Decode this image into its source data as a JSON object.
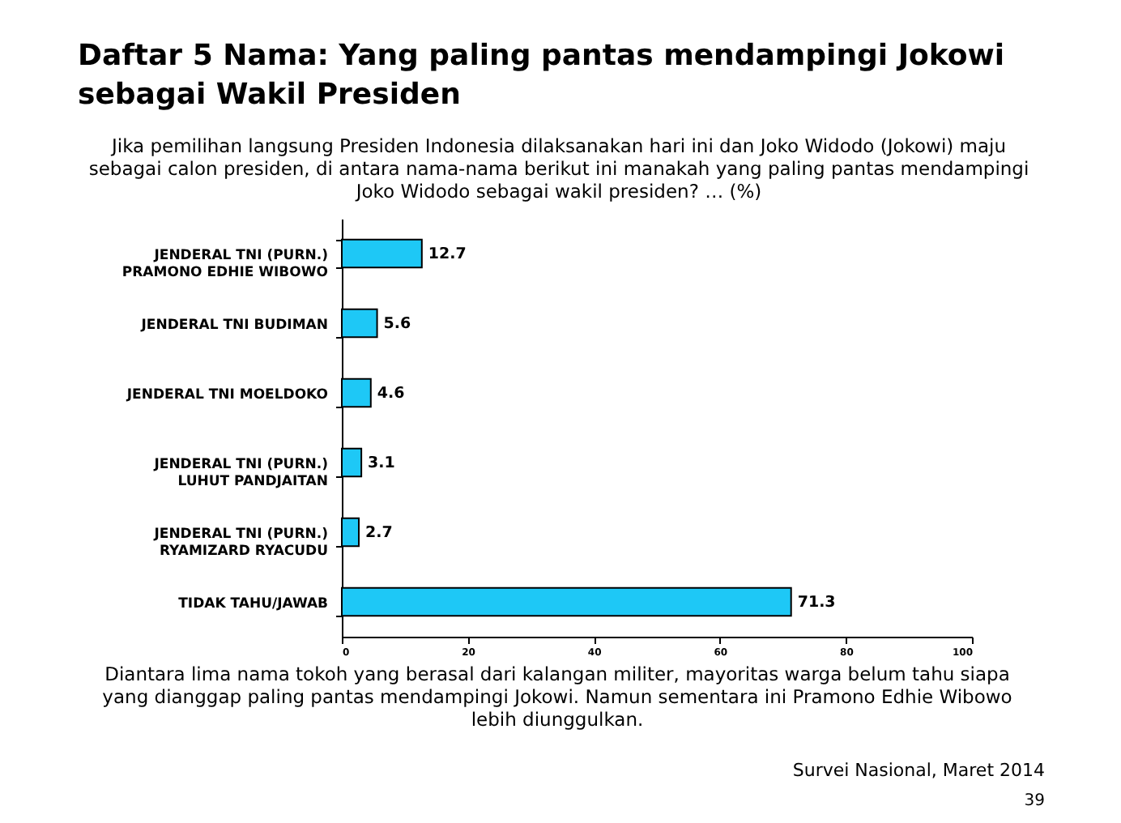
{
  "chart_data": {
    "type": "bar",
    "orientation": "horizontal",
    "title": "Daftar 5 Nama: Yang paling pantas mendampingi Jokowi sebagai Wakil Presiden",
    "subtitle": "Jika pemilihan langsung Presiden Indonesia dilaksanakan hari ini dan Joko Widodo (Jokowi) maju sebagai calon presiden, di antara nama-nama berikut ini manakah yang paling pantas mendampingi Joko Widodo sebagai wakil presiden? … (%)",
    "categories": [
      "JENDERAL TNI (PURN.) PRAMONO EDHIE WIBOWO",
      "JENDERAL TNI BUDIMAN",
      "JENDERAL TNI MOELDOKO",
      "JENDERAL TNI (PURN.) LUHUT PANDJAITAN",
      "JENDERAL TNI (PURN.) RYAMIZARD RYACUDU",
      "TIDAK TAHU/JAWAB"
    ],
    "values": [
      12.7,
      5.6,
      4.6,
      3.1,
      2.7,
      71.3
    ],
    "color": "#1ec8f6",
    "xlim": [
      0,
      100
    ],
    "xticks": [
      0,
      20,
      40,
      60,
      80,
      100
    ],
    "data_labels": true,
    "annotations": [
      "Diantara lima nama tokoh yang berasal dari kalangan militer, mayoritas warga belum tahu siapa yang dianggap paling pantas mendampingi Jokowi. Namun sementara ini Pramono Edhie Wibowo lebih diunggulkan.",
      "Survei Nasional, Maret 2014",
      "39"
    ]
  }
}
